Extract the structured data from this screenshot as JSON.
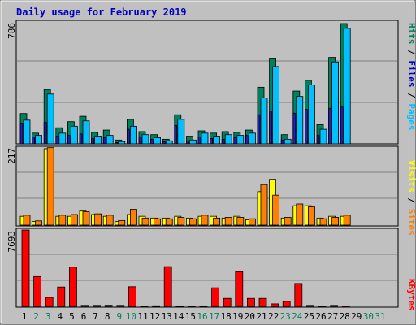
{
  "chart_data": [
    {
      "type": "bar",
      "title": "Daily usage for February 2019",
      "categories": [
        "1",
        "2",
        "3",
        "4",
        "5",
        "6",
        "7",
        "8",
        "9",
        "10",
        "11",
        "12",
        "13",
        "14",
        "15",
        "16",
        "17",
        "18",
        "19",
        "20",
        "21",
        "22",
        "23",
        "24",
        "25",
        "26",
        "27",
        "28"
      ],
      "y_max_label": "786",
      "ylim": [
        0,
        786
      ],
      "grid": true,
      "legend_right": [
        "Pages",
        "Files",
        "Hits"
      ],
      "series": [
        {
          "name": "Hits",
          "color": "#00805c",
          "values": [
            198,
            70,
            355,
            105,
            145,
            180,
            75,
            90,
            25,
            160,
            80,
            60,
            30,
            190,
            50,
            85,
            70,
            80,
            75,
            90,
            370,
            555,
            60,
            345,
            415,
            125,
            565,
            786
          ]
        },
        {
          "name": "Files",
          "color": "#00c0ff",
          "values": [
            155,
            55,
            325,
            70,
            115,
            150,
            50,
            55,
            15,
            115,
            60,
            40,
            20,
            160,
            25,
            70,
            50,
            60,
            55,
            70,
            300,
            505,
            30,
            310,
            385,
            95,
            535,
            755
          ]
        },
        {
          "name": "Pages",
          "color": "#2020c0",
          "values": [
            135,
            45,
            140,
            50,
            55,
            65,
            35,
            40,
            8,
            95,
            45,
            30,
            15,
            120,
            20,
            45,
            35,
            30,
            40,
            55,
            190,
            215,
            25,
            200,
            225,
            55,
            230,
            240
          ]
        }
      ]
    },
    {
      "type": "bar",
      "categories": [
        "1",
        "2",
        "3",
        "4",
        "5",
        "6",
        "7",
        "8",
        "9",
        "10",
        "11",
        "12",
        "13",
        "14",
        "15",
        "16",
        "17",
        "18",
        "19",
        "20",
        "21",
        "22",
        "23",
        "24",
        "25",
        "26",
        "27",
        "28"
      ],
      "y_max_label": "217",
      "ylim": [
        0,
        217
      ],
      "grid": true,
      "legend_right": [
        "Sites",
        "Visits"
      ],
      "series": [
        {
          "name": "Visits",
          "color": "#ffff00",
          "values": [
            25,
            10,
            217,
            25,
            25,
            40,
            30,
            25,
            10,
            30,
            25,
            20,
            20,
            25,
            20,
            25,
            25,
            20,
            25,
            15,
            95,
            130,
            20,
            55,
            55,
            20,
            25,
            25
          ]
        },
        {
          "name": "Sites",
          "color": "#ff8000",
          "values": [
            28,
            12,
            220,
            28,
            30,
            38,
            32,
            28,
            13,
            45,
            20,
            18,
            18,
            22,
            18,
            28,
            20,
            22,
            22,
            18,
            115,
            85,
            22,
            60,
            52,
            18,
            22,
            28
          ]
        }
      ]
    },
    {
      "type": "bar",
      "categories": [
        "1",
        "2",
        "3",
        "4",
        "5",
        "6",
        "7",
        "8",
        "9",
        "10",
        "11",
        "12",
        "13",
        "14",
        "15",
        "16",
        "17",
        "18",
        "19",
        "20",
        "21",
        "22",
        "23",
        "24",
        "25",
        "26",
        "27",
        "28"
      ],
      "y_max_label": "7693",
      "ylim": [
        0,
        7693
      ],
      "grid": true,
      "legend_right": [
        "KBytes"
      ],
      "series": [
        {
          "name": "KBytes",
          "color": "#ff0000",
          "values": [
            7693,
            3000,
            900,
            1950,
            3950,
            100,
            100,
            110,
            100,
            1980,
            50,
            60,
            4000,
            50,
            50,
            50,
            1870,
            800,
            3500,
            800,
            800,
            250,
            500,
            2300,
            100,
            50,
            100,
            0
          ]
        }
      ]
    }
  ],
  "x_axis": {
    "labels": [
      "1",
      "2",
      "3",
      "4",
      "5",
      "6",
      "7",
      "8",
      "9",
      "10",
      "11",
      "12",
      "13",
      "14",
      "15",
      "16",
      "17",
      "18",
      "19",
      "20",
      "21",
      "22",
      "23",
      "24",
      "25",
      "26",
      "27",
      "28",
      "29",
      "30",
      "31"
    ],
    "weekend_days": [
      "2",
      "3",
      "9",
      "10",
      "16",
      "17",
      "23",
      "24",
      "30",
      "31"
    ],
    "weekday_color": "#000000",
    "weekend_color": "#00805c"
  },
  "colors": {
    "background": "#c0c0c0",
    "title": "#0000c0",
    "grid": "#808080"
  }
}
